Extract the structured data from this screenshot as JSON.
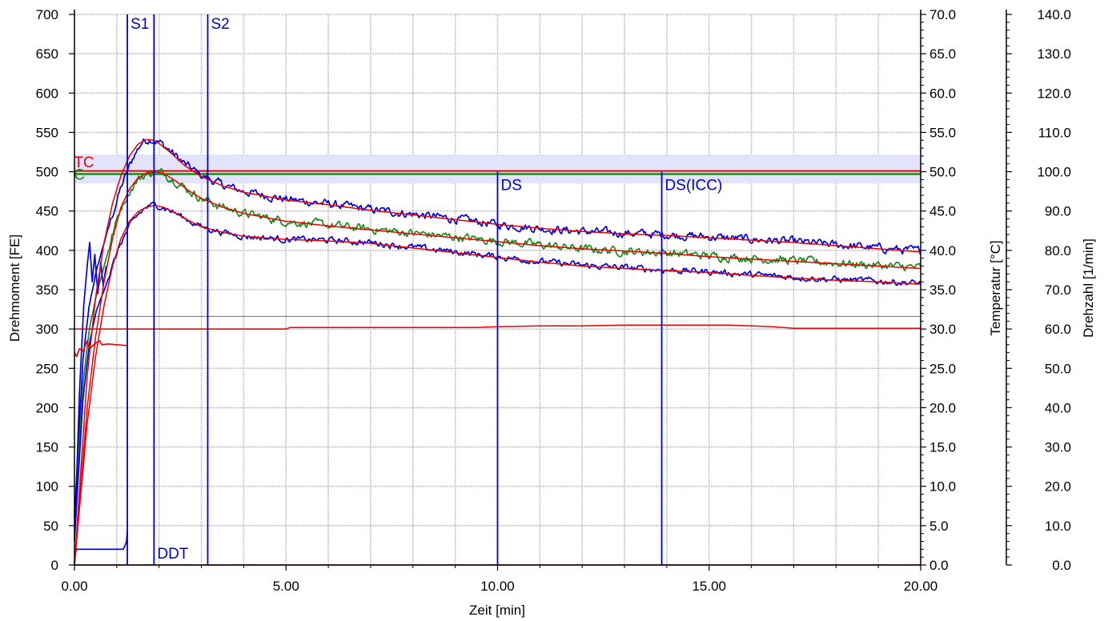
{
  "chart_data": {
    "type": "line",
    "xlabel": "Zeit [min]",
    "ylabel_left": "Drehmoment [FE]",
    "ylabel_right1": "Temperatur [°C]",
    "ylabel_right2": "Drehzahl [1/min]",
    "xlim": [
      0,
      20
    ],
    "ylim_left": [
      0,
      700
    ],
    "ylim_right1": [
      0,
      70
    ],
    "ylim_right2": [
      0,
      140
    ],
    "xticks": [
      "0.00",
      "5.00",
      "10.00",
      "15.00",
      "20.00"
    ],
    "xtick_values": [
      0,
      5,
      10,
      15,
      20
    ],
    "yticks_left": [
      "0",
      "50",
      "100",
      "150",
      "200",
      "250",
      "300",
      "350",
      "400",
      "450",
      "500",
      "550",
      "600",
      "650",
      "700"
    ],
    "yticks_right1": [
      "0.0",
      "5.0",
      "10.0",
      "15.0",
      "20.0",
      "25.0",
      "30.0",
      "35.0",
      "40.0",
      "45.0",
      "50.0",
      "55.0",
      "60.0",
      "65.0",
      "70.0"
    ],
    "yticks_right2": [
      "0.0",
      "10.0",
      "20.0",
      "30.0",
      "40.0",
      "50.0",
      "60.0",
      "70.0",
      "80.0",
      "90.0",
      "100.0",
      "110.0",
      "120.0",
      "130.0",
      "140.0"
    ],
    "grid": true,
    "colors": {
      "upper": "#0000dd",
      "middle": "#1a8a1a",
      "fit": "#ee0000",
      "marker": "#0000cc",
      "band": "#e3e3fb",
      "hline": "#808080"
    },
    "target_band": [
      485,
      522
    ],
    "target_line_red": 501,
    "target_line_green": 497,
    "gray_line": 316,
    "series": [
      {
        "role": "upper-envelope",
        "color": "#0000dd",
        "noise": 4,
        "x": [
          0.0,
          0.1,
          0.2,
          0.35,
          0.5,
          0.7,
          0.9,
          1.1,
          1.25,
          1.4,
          1.6,
          1.8,
          2.0,
          2.3,
          2.6,
          3.0,
          3.5,
          4.0,
          5.0,
          6.0,
          7.0,
          8.0,
          9.0,
          10.0,
          11.0,
          12.0,
          13.0,
          14.0,
          15.0,
          16.0,
          17.0,
          18.0,
          19.0,
          20.0
        ],
        "y": [
          60,
          160,
          260,
          330,
          370,
          410,
          445,
          480,
          500,
          520,
          538,
          542,
          538,
          525,
          510,
          495,
          483,
          475,
          465,
          459,
          452,
          446,
          440,
          433,
          428,
          424,
          422,
          420,
          417,
          414,
          411,
          407,
          403,
          399
        ]
      },
      {
        "role": "middle",
        "color": "#1a8a1a",
        "noise": 4,
        "x": [
          0.0,
          0.1,
          0.2,
          0.35,
          0.5,
          0.7,
          0.9,
          1.1,
          1.3,
          1.5,
          1.7,
          1.9,
          2.1,
          2.4,
          2.7,
          3.0,
          3.5,
          4.0,
          5.0,
          6.0,
          7.0,
          8.0,
          9.0,
          10.0,
          11.0,
          12.0,
          13.0,
          14.0,
          15.0,
          16.0,
          17.0,
          18.0,
          19.0,
          20.0
        ],
        "y": [
          40,
          140,
          230,
          300,
          340,
          380,
          420,
          455,
          475,
          490,
          497,
          500,
          498,
          488,
          476,
          466,
          455,
          447,
          437,
          432,
          427,
          422,
          417,
          412,
          407,
          402,
          399,
          397,
          393,
          390,
          387,
          384,
          381,
          378
        ]
      },
      {
        "role": "lower-envelope",
        "color": "#0000dd",
        "noise": 3,
        "x": [
          0.0,
          0.1,
          0.2,
          0.35,
          0.5,
          0.7,
          0.9,
          1.1,
          1.3,
          1.5,
          1.7,
          1.9,
          2.1,
          2.4,
          2.7,
          3.0,
          3.5,
          4.0,
          5.0,
          6.0,
          7.0,
          8.0,
          9.0,
          10.0,
          11.0,
          12.0,
          13.0,
          14.0,
          15.0,
          16.0,
          17.0,
          18.0,
          19.0,
          20.0
        ],
        "y": [
          30,
          120,
          210,
          280,
          320,
          350,
          380,
          410,
          430,
          445,
          455,
          458,
          455,
          447,
          438,
          430,
          423,
          418,
          414,
          413,
          410,
          404,
          398,
          392,
          386,
          381,
          378,
          375,
          373,
          369,
          366,
          363,
          361,
          358
        ]
      },
      {
        "role": "startup-spike",
        "color": "#0000dd",
        "noise": 0,
        "x": [
          0.02,
          0.12,
          0.22,
          0.3,
          0.36,
          0.42,
          0.48,
          0.55,
          0.62,
          0.68,
          0.75
        ],
        "y": [
          60,
          220,
          330,
          380,
          410,
          360,
          395,
          345,
          385,
          355,
          380
        ]
      },
      {
        "role": "temperature",
        "color": "#ee0000",
        "noise": 0,
        "x": [
          0.0,
          0.05,
          0.12,
          0.2,
          0.3,
          0.35,
          0.5,
          0.6,
          0.65,
          0.8,
          1.0,
          1.25
        ],
        "y": [
          270,
          265,
          275,
          272,
          285,
          275,
          282,
          285,
          280,
          281,
          280,
          279
        ]
      },
      {
        "role": "speed",
        "color": "#0000dd",
        "noise": 0,
        "x": [
          0.0,
          0.02,
          0.05,
          0.1,
          0.5,
          1.0,
          1.15,
          1.2,
          1.23,
          1.25
        ],
        "y": [
          0,
          15,
          20,
          20,
          20,
          20,
          20,
          25,
          30,
          44
        ]
      }
    ],
    "fits": [
      {
        "x": [
          0.0,
          0.15,
          0.3,
          0.5,
          0.7,
          0.9,
          1.1,
          1.3,
          1.5,
          1.7,
          1.85,
          2.0,
          2.3,
          2.6,
          3.0,
          3.5,
          4.0,
          5.0,
          6.0,
          7.0,
          8.0,
          9.0,
          10.0,
          11.0,
          12.0,
          13.0,
          14.0,
          15.0,
          16.0,
          17.0,
          18.0,
          19.0,
          20.0
        ],
        "y": [
          0,
          120,
          240,
          340,
          410,
          460,
          495,
          520,
          535,
          541,
          540,
          536,
          523,
          508,
          494,
          482,
          474,
          464,
          458,
          451,
          445,
          439,
          433,
          428,
          424,
          421,
          419,
          416,
          413,
          410,
          406,
          402,
          398
        ]
      },
      {
        "x": [
          0.0,
          0.15,
          0.3,
          0.5,
          0.7,
          0.9,
          1.1,
          1.3,
          1.5,
          1.7,
          1.9,
          2.1,
          2.4,
          2.7,
          3.0,
          3.5,
          4.0,
          5.0,
          6.0,
          7.0,
          8.0,
          9.0,
          10.0,
          11.0,
          12.0,
          13.0,
          14.0,
          15.0,
          16.0,
          17.0,
          18.0,
          19.0,
          20.0
        ],
        "y": [
          0,
          100,
          200,
          290,
          360,
          415,
          455,
          478,
          492,
          498,
          500,
          498,
          488,
          476,
          466,
          455,
          447,
          437,
          431,
          426,
          421,
          416,
          411,
          406,
          402,
          399,
          396,
          392,
          389,
          386,
          383,
          380,
          377
        ]
      },
      {
        "x": [
          0.0,
          0.15,
          0.3,
          0.5,
          0.7,
          0.9,
          1.1,
          1.3,
          1.5,
          1.7,
          1.9,
          2.1,
          2.4,
          2.7,
          3.0,
          3.5,
          4.0,
          5.0,
          6.0,
          7.0,
          8.0,
          9.0,
          10.0,
          11.0,
          12.0,
          13.0,
          14.0,
          15.0,
          16.0,
          17.0,
          18.0,
          19.0,
          20.0
        ],
        "y": [
          0,
          90,
          180,
          265,
          330,
          380,
          415,
          437,
          449,
          455,
          457,
          455,
          447,
          438,
          430,
          423,
          418,
          414,
          412,
          409,
          403,
          397,
          391,
          385,
          380,
          377,
          374,
          372,
          368,
          365,
          362,
          360,
          357
        ]
      },
      {
        "x": [
          0.0,
          3.0,
          5.0,
          5.1,
          5.2,
          9.5,
          10.0,
          11.0,
          12.0,
          13.0,
          14.0,
          15.0,
          15.5,
          16.0,
          16.5,
          17.0,
          20.0
        ],
        "y": [
          300,
          300,
          300,
          302,
          302,
          302,
          303,
          304,
          304,
          305,
          305,
          305,
          305,
          304,
          303,
          301,
          301
        ]
      }
    ],
    "markers": [
      {
        "label": "S1",
        "x": 1.25,
        "ymax": 700,
        "label_pos": "top"
      },
      {
        "label": "S2",
        "x": 3.15,
        "ymax": 700,
        "label_pos": "top"
      },
      {
        "label": "DS",
        "x": 10.0,
        "ymax": 500,
        "label_pos": "right"
      },
      {
        "label": "DS(ICC)",
        "x": 13.88,
        "ymax": 500,
        "label_pos": "right"
      },
      {
        "label": "DDT",
        "x": 1.88,
        "ymax": 700,
        "label_pos": "bottom"
      }
    ],
    "annotations": [
      {
        "text": "TC",
        "x": 0.12,
        "y": 513
      },
      {
        "text": "C",
        "x": 0.12,
        "y": 497
      }
    ]
  }
}
